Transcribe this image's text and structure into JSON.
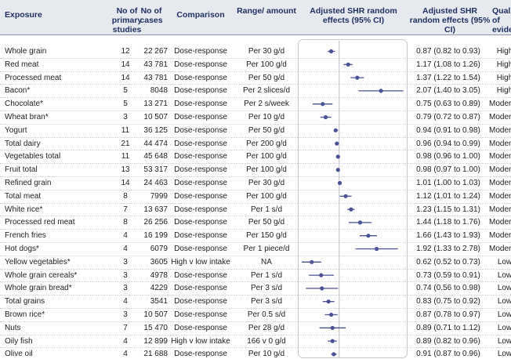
{
  "headers": {
    "exposure": "Exposure",
    "studies": "No of primary studies",
    "cases": "No of cases",
    "comparison": "Comparison",
    "range": "Range/ amount",
    "shr_plot": "Adjusted SHR random effects (95% CI)",
    "shr_text": "Adjusted SHR random effects (95% CI)",
    "quality": "Quality of evidence"
  },
  "accent": "#4b5294",
  "rows": [
    {
      "exposure": "Whole grain",
      "studies": "12",
      "cases": "22 267",
      "comparison": "Dose-response",
      "range": "Per 30 g/d",
      "shr": "0.87 (0.82 to 0.93)",
      "quality": "High"
    },
    {
      "exposure": "Red meat",
      "studies": "14",
      "cases": "43 781",
      "comparison": "Dose-response",
      "range": "Per 100 g/d",
      "shr": "1.17 (1.08 to 1.26)",
      "quality": "High"
    },
    {
      "exposure": "Processed meat",
      "studies": "14",
      "cases": "43 781",
      "comparison": "Dose-response",
      "range": "Per 50 g/d",
      "shr": "1.37 (1.22 to 1.54)",
      "quality": "High"
    },
    {
      "exposure": "Bacon*",
      "studies": "5",
      "cases": "8048",
      "comparison": "Dose-response",
      "range": "Per 2 slices/d",
      "shr": "2.07 (1.40 to 3.05)",
      "quality": "High"
    },
    {
      "exposure": "Chocolate*",
      "studies": "5",
      "cases": "13 271",
      "comparison": "Dose-response",
      "range": "Per 2 s/week",
      "shr": "0.75 (0.63 to 0.89)",
      "quality": "Moderate"
    },
    {
      "exposure": "Wheat bran*",
      "studies": "3",
      "cases": "10 507",
      "comparison": "Dose-response",
      "range": "Per 10 g/d",
      "shr": "0.79 (0.72 to 0.87)",
      "quality": "Moderate"
    },
    {
      "exposure": "Yogurt",
      "studies": "11",
      "cases": "36 125",
      "comparison": "Dose-response",
      "range": "Per 50 g/d",
      "shr": "0.94 (0.91 to 0.98)",
      "quality": "Moderate"
    },
    {
      "exposure": "Total dairy",
      "studies": "21",
      "cases": "44 474",
      "comparison": "Dose-response",
      "range": "Per 200 g/d",
      "shr": "0.96 (0.94 to 0.99)",
      "quality": "Moderate"
    },
    {
      "exposure": "Vegetables total",
      "studies": "11",
      "cases": "45 648",
      "comparison": "Dose-response",
      "range": "Per 100 g/d",
      "shr": "0.98 (0.96 to 1.00)",
      "quality": "Moderate"
    },
    {
      "exposure": "Fruit total",
      "studies": "13",
      "cases": "53 317",
      "comparison": "Dose-response",
      "range": "Per 100 g/d",
      "shr": "0.98 (0.97 to 1.00)",
      "quality": "Moderate"
    },
    {
      "exposure": "Refined grain",
      "studies": "14",
      "cases": "24 463",
      "comparison": "Dose-response",
      "range": "Per 30 g/d",
      "shr": "1.01 (1.00 to 1.03)",
      "quality": "Moderate"
    },
    {
      "exposure": "Total meat",
      "studies": "8",
      "cases": "7999",
      "comparison": "Dose-response",
      "range": "Per 100 g/d",
      "shr": "1.12 (1.01 to 1.24)",
      "quality": "Moderate"
    },
    {
      "exposure": "White rice*",
      "studies": "7",
      "cases": "13 637",
      "comparison": "Dose-response",
      "range": "Per 1 s/d",
      "shr": "1.23 (1.15 to 1.31)",
      "quality": "Moderate"
    },
    {
      "exposure": "Processed red meat",
      "studies": "8",
      "cases": "26 256",
      "comparison": "Dose-response",
      "range": "Per 50 g/d",
      "shr": "1.44 (1.18 to 1.76)",
      "quality": "Moderate"
    },
    {
      "exposure": "French fries",
      "studies": "4",
      "cases": "16 199",
      "comparison": "Dose-response",
      "range": "Per 150 g/d",
      "shr": "1.66 (1.43 to 1.93)",
      "quality": "Moderate"
    },
    {
      "exposure": "Hot dogs*",
      "studies": "4",
      "cases": "6079",
      "comparison": "Dose-response",
      "range": "Per 1 piece/d",
      "shr": "1.92 (1.33 to 2.78)",
      "quality": "Moderate"
    },
    {
      "exposure": "Yellow vegetables*",
      "studies": "3",
      "cases": "3605",
      "comparison": "High v low intake",
      "range": "NA",
      "shr": "0.62 (0.52 to 0.73)",
      "quality": "Low"
    },
    {
      "exposure": "Whole grain cereals*",
      "studies": "3",
      "cases": "4978",
      "comparison": "Dose-response",
      "range": "Per 1 s/d",
      "shr": "0.73 (0.59 to 0.91)",
      "quality": "Low"
    },
    {
      "exposure": "Whole grain bread*",
      "studies": "3",
      "cases": "4229",
      "comparison": "Dose-response",
      "range": "Per 3 s/d",
      "shr": "0.74 (0.56 to 0.98)",
      "quality": "Low"
    },
    {
      "exposure": "Total grains",
      "studies": "4",
      "cases": "3541",
      "comparison": "Dose-response",
      "range": "Per 3 s/d",
      "shr": "0.83 (0.75 to 0.92)",
      "quality": "Low"
    },
    {
      "exposure": "Brown rice*",
      "studies": "3",
      "cases": "10 507",
      "comparison": "Dose-response",
      "range": "Per 0.5 s/d",
      "shr": "0.87 (0.78 to 0.97)",
      "quality": "Low"
    },
    {
      "exposure": "Nuts",
      "studies": "7",
      "cases": "15 470",
      "comparison": "Dose-response",
      "range": "Per 28 g/d",
      "shr": "0.89 (0.71 to 1.12)",
      "quality": "Low"
    },
    {
      "exposure": "Oily fish",
      "studies": "4",
      "cases": "12 899",
      "comparison": "High v low intake",
      "range": "166 v 0 g/d",
      "shr": "0.89 (0.82 to 0.96)",
      "quality": "Low"
    },
    {
      "exposure": "Olive oil",
      "studies": "4",
      "cases": "21 688",
      "comparison": "Dose-response",
      "range": "Per 10 g/d",
      "shr": "0.91 (0.87 to 0.96)",
      "quality": "Low"
    }
  ],
  "chart_data": {
    "type": "scatter",
    "x_scale": "log",
    "xlim": [
      0.5,
      3.2
    ],
    "reference_line": 1,
    "categories": [
      "Whole grain",
      "Red meat",
      "Processed meat",
      "Bacon*",
      "Chocolate*",
      "Wheat bran*",
      "Yogurt",
      "Total dairy",
      "Vegetables total",
      "Fruit total",
      "Refined grain",
      "Total meat",
      "White rice*",
      "Processed red meat",
      "French fries",
      "Hot dogs*",
      "Yellow vegetables*",
      "Whole grain cereals*",
      "Whole grain bread*",
      "Total grains",
      "Brown rice*",
      "Nuts",
      "Oily fish",
      "Olive oil"
    ],
    "values": [
      0.87,
      1.17,
      1.37,
      2.07,
      0.75,
      0.79,
      0.94,
      0.96,
      0.98,
      0.98,
      1.01,
      1.12,
      1.23,
      1.44,
      1.66,
      1.92,
      0.62,
      0.73,
      0.74,
      0.83,
      0.87,
      0.89,
      0.89,
      0.91
    ],
    "lower": [
      0.82,
      1.08,
      1.22,
      1.4,
      0.63,
      0.72,
      0.91,
      0.94,
      0.96,
      0.97,
      1.0,
      1.01,
      1.15,
      1.18,
      1.43,
      1.33,
      0.52,
      0.59,
      0.56,
      0.75,
      0.78,
      0.71,
      0.82,
      0.87
    ],
    "upper": [
      0.93,
      1.26,
      1.54,
      3.05,
      0.89,
      0.87,
      0.98,
      0.99,
      1.0,
      1.0,
      1.03,
      1.24,
      1.31,
      1.76,
      1.93,
      2.78,
      0.73,
      0.91,
      0.98,
      0.92,
      0.97,
      1.12,
      0.96,
      0.96
    ],
    "xlabel": "Adjusted SHR random effects (95% CI)",
    "grid": false
  }
}
